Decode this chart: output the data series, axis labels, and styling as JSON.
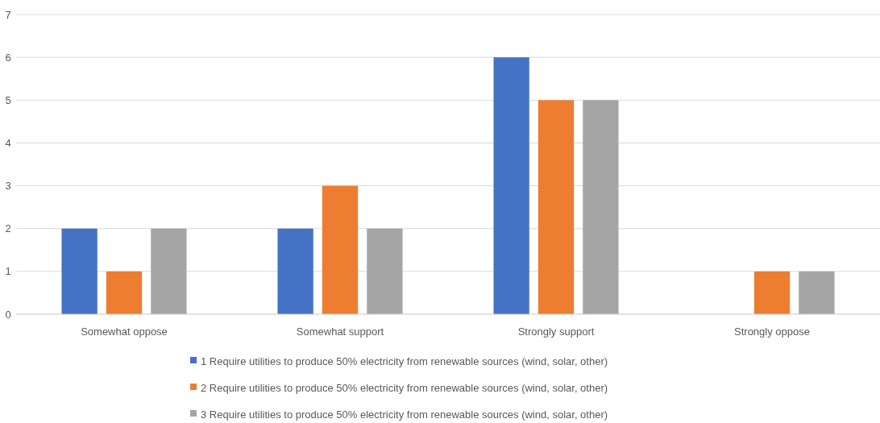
{
  "chart_data": {
    "type": "bar",
    "categories": [
      "Somewhat oppose",
      "Somewhat support",
      "Strongly support",
      "Strongly oppose"
    ],
    "series": [
      {
        "name": "1 Require utilities to produce 50% electricity from renewable sources (wind, solar, other)",
        "color": "#4472c4",
        "values": [
          2,
          2,
          6,
          0
        ]
      },
      {
        "name": "2 Require utilities to produce 50% electricity from renewable sources (wind, solar, other)",
        "color": "#ed7d31",
        "values": [
          1,
          3,
          5,
          1
        ]
      },
      {
        "name": "3 Require utilities to produce 50% electricity from renewable sources (wind, solar, other)",
        "color": "#a5a5a5",
        "values": [
          2,
          2,
          5,
          1
        ]
      }
    ],
    "ylim": [
      0,
      7
    ],
    "yticks": [
      0,
      1,
      2,
      3,
      4,
      5,
      6,
      7
    ],
    "grid": "y",
    "legend": "bottom"
  }
}
